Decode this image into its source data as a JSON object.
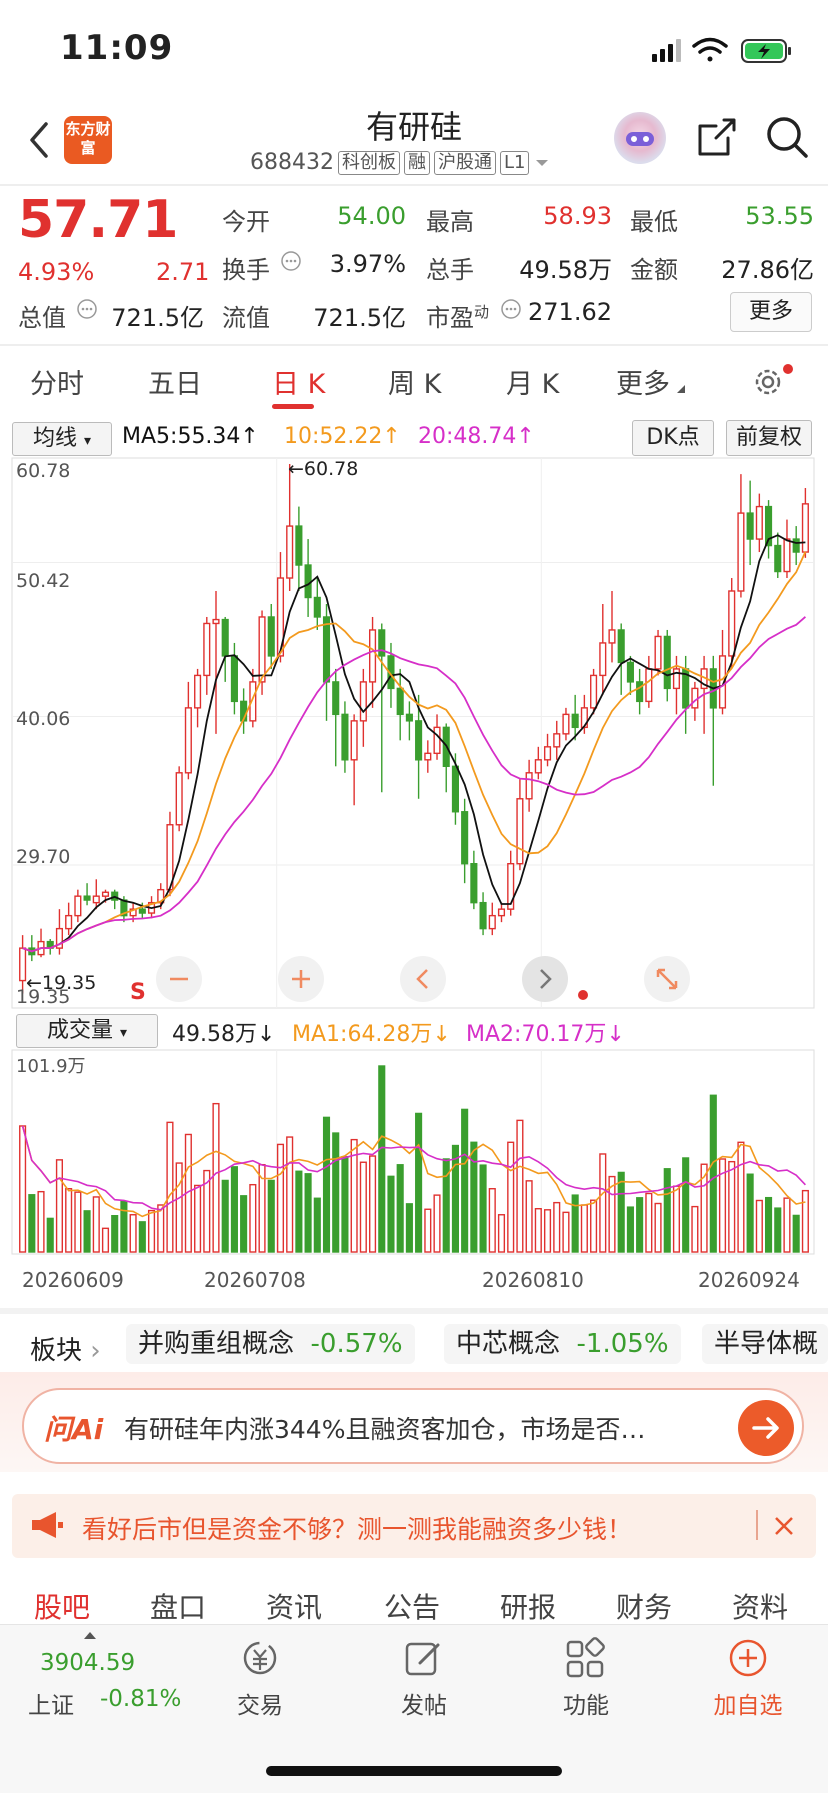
{
  "status": {
    "time": "11:09"
  },
  "header": {
    "name": "有研硅",
    "code": "688432",
    "tags": [
      "科创板",
      "融",
      "沪股通",
      "L1"
    ],
    "logo_text": "东方财富"
  },
  "quote": {
    "price": "57.71",
    "pct": "4.93%",
    "change": "2.71",
    "fields": [
      {
        "label": "今开",
        "value": "54.00",
        "color": "#3a9e2e"
      },
      {
        "label": "最高",
        "value": "58.93",
        "color": "#e0312f"
      },
      {
        "label": "最低",
        "value": "53.55",
        "color": "#3a9e2e"
      },
      {
        "label": "换手",
        "value": "3.97%",
        "color": "#222222"
      },
      {
        "label": "总手",
        "value": "49.58万",
        "color": "#222222"
      },
      {
        "label": "金额",
        "value": "27.86亿",
        "color": "#222222"
      },
      {
        "label": "总值",
        "value": "721.5亿",
        "color": "#222222"
      },
      {
        "label": "流值",
        "value": "721.5亿",
        "color": "#222222"
      },
      {
        "label": "市盈",
        "value": "271.62",
        "color": "#222222",
        "sup": "动"
      }
    ],
    "more": "更多"
  },
  "period_tabs": [
    "分时",
    "五日",
    "日 K",
    "周 K",
    "月 K",
    "更多"
  ],
  "active_period": "日 K",
  "kline": {
    "indicator_select": "均线",
    "ma5": "MA5:55.34",
    "ma10": "10:52.22",
    "ma20": "20:48.74",
    "dk_point": "DK点",
    "adjust": "前复权",
    "y_labels": [
      "60.78",
      "50.42",
      "40.06",
      "29.70",
      "19.35"
    ],
    "max_label": "60.78",
    "min_label": "19.35",
    "sell_marker": "S"
  },
  "volume": {
    "indicator_select": "成交量",
    "vol": "49.58万",
    "ma1": "MA1:64.28万",
    "ma2": "MA2:70.17万",
    "max_label": "101.9万",
    "dates": [
      "20260609",
      "20260708",
      "20260810",
      "20260924"
    ]
  },
  "boards": {
    "label": "板块",
    "items": [
      {
        "name": "并购重组概念",
        "pct": "-0.57%"
      },
      {
        "name": "中芯概念",
        "pct": "-1.05%"
      },
      {
        "name": "半导体概",
        "pct": ""
      }
    ]
  },
  "ai": {
    "logo": "问Ai",
    "text": "有研硅年内涨344%且融资客加仓，市场是否…"
  },
  "promo": {
    "text": "看好后市但是资金不够？测一测我能融资多少钱！"
  },
  "bottom_tabs": [
    "股吧",
    "盘口",
    "资讯",
    "公告",
    "研报",
    "财务",
    "资料"
  ],
  "bottom_nav": {
    "index_value": "3904.59",
    "index_name": "上证",
    "index_pct": "-0.81%",
    "items": [
      "交易",
      "发帖",
      "功能",
      "加自选"
    ]
  },
  "colors": {
    "up": "#e0312f",
    "down": "#3a9e2e",
    "ma5": "#111111",
    "ma10": "#f39a1e",
    "ma20": "#d62fc8",
    "accent": "#e8552e"
  },
  "chart_data": {
    "type": "candlestick",
    "y_range": [
      19.35,
      60.78
    ],
    "y_ticks": [
      60.78,
      50.42,
      40.06,
      29.7,
      19.35
    ],
    "x_tick_labels": [
      "20260609",
      "20260708",
      "20260810",
      "20260924"
    ],
    "series": [
      {
        "name": "MA5",
        "last": 55.34
      },
      {
        "name": "MA10",
        "last": 52.22
      },
      {
        "name": "MA20",
        "last": 48.74
      }
    ],
    "candles": [
      [
        21,
        23.5,
        20,
        24.5
      ],
      [
        23.5,
        23,
        22.5,
        24.5
      ],
      [
        23,
        24,
        22.8,
        25
      ],
      [
        24,
        23.5,
        23,
        24.2
      ],
      [
        23.5,
        25,
        23,
        26.5
      ],
      [
        25,
        26,
        24.5,
        27
      ],
      [
        26,
        27.5,
        25.5,
        28
      ],
      [
        27.5,
        27.2,
        26.8,
        28.5
      ],
      [
        27,
        27.5,
        26.5,
        28.8
      ],
      [
        27.5,
        27.8,
        27,
        28
      ],
      [
        27.8,
        27.2,
        26.5,
        28
      ],
      [
        27.2,
        26,
        25.5,
        27.5
      ],
      [
        26,
        26.5,
        25.5,
        27
      ],
      [
        26.5,
        26.2,
        25.8,
        27
      ],
      [
        26.2,
        27,
        25.8,
        27.5
      ],
      [
        27,
        28,
        26.5,
        28.5
      ],
      [
        28,
        33,
        27.5,
        34
      ],
      [
        33,
        37,
        32.5,
        37.5
      ],
      [
        37,
        42,
        36.5,
        44
      ],
      [
        42,
        44.5,
        40.5,
        45
      ],
      [
        44.5,
        48.5,
        43,
        49
      ],
      [
        48.5,
        48.8,
        40,
        51
      ],
      [
        48.8,
        46,
        44,
        49
      ],
      [
        46,
        42.5,
        41.5,
        47
      ],
      [
        42.5,
        41,
        40,
        43.5
      ],
      [
        41,
        44,
        40.5,
        45
      ],
      [
        44,
        49,
        43,
        49.5
      ],
      [
        49,
        46,
        45,
        50
      ],
      [
        46,
        52,
        45.5,
        54
      ],
      [
        52,
        56,
        51,
        60.78
      ],
      [
        56,
        53,
        51,
        57.5
      ],
      [
        53,
        50.5,
        49,
        55
      ],
      [
        50.5,
        49,
        48,
        52
      ],
      [
        49,
        44,
        41,
        50
      ],
      [
        44,
        41.5,
        37.5,
        45
      ],
      [
        41.5,
        38,
        37,
        42.5
      ],
      [
        38,
        41,
        34.5,
        41.5
      ],
      [
        41,
        44,
        39,
        45
      ],
      [
        44,
        48,
        42,
        49
      ],
      [
        48,
        46,
        35.5,
        48.5
      ],
      [
        46,
        43.5,
        42,
        47
      ],
      [
        43.5,
        41.5,
        39.5,
        45
      ],
      [
        41.5,
        41,
        39.5,
        42.5
      ],
      [
        41,
        38,
        35,
        43
      ],
      [
        38,
        38.5,
        37,
        39.5
      ],
      [
        38.5,
        40.5,
        38,
        41.5
      ],
      [
        40.5,
        37.5,
        35.5,
        40.8
      ],
      [
        37.5,
        34,
        33,
        38.5
      ],
      [
        34,
        30,
        28.5,
        35
      ],
      [
        30,
        27,
        26.5,
        31
      ],
      [
        27,
        25,
        24.5,
        27.8
      ],
      [
        25,
        26,
        24.5,
        27
      ],
      [
        26,
        26.5,
        25.5,
        27
      ],
      [
        26.5,
        30,
        26,
        31
      ],
      [
        30,
        35,
        29.5,
        36.5
      ],
      [
        35,
        37,
        34,
        38
      ],
      [
        37,
        38,
        36.5,
        39
      ],
      [
        38,
        39,
        37.5,
        40
      ],
      [
        39,
        40,
        38,
        41
      ],
      [
        40,
        41.5,
        39.5,
        42
      ],
      [
        41.5,
        40.5,
        39.5,
        43
      ],
      [
        40.5,
        42,
        40,
        43
      ],
      [
        42,
        44.5,
        41.5,
        45
      ],
      [
        44.5,
        47,
        43,
        50
      ],
      [
        47,
        48,
        45.5,
        51
      ],
      [
        48,
        45.5,
        43,
        48.5
      ],
      [
        45.5,
        44,
        43,
        46
      ],
      [
        44,
        42.5,
        41.5,
        45
      ],
      [
        42.5,
        45,
        42,
        46
      ],
      [
        45,
        47.5,
        44.5,
        48
      ],
      [
        47.5,
        43.5,
        42.5,
        48
      ],
      [
        43.5,
        45,
        41.5,
        46
      ],
      [
        45,
        42,
        40,
        46
      ],
      [
        42,
        43.5,
        41,
        44
      ],
      [
        43.5,
        45,
        40,
        46
      ],
      [
        45,
        42,
        36,
        46
      ],
      [
        42,
        46,
        41.5,
        48
      ],
      [
        46,
        51,
        45,
        52
      ],
      [
        51,
        57,
        50.5,
        60
      ],
      [
        57,
        55,
        53,
        59.5
      ],
      [
        55,
        57.5,
        54,
        58.5
      ],
      [
        57.5,
        54.5,
        53.5,
        58
      ],
      [
        54.5,
        52.5,
        52,
        55.5
      ],
      [
        52.5,
        55,
        52,
        56.5
      ],
      [
        55,
        54,
        53,
        56
      ],
      [
        54,
        57.71,
        53.55,
        58.93
      ]
    ],
    "volume_max": "101.9万",
    "volume_last": "49.58万"
  }
}
